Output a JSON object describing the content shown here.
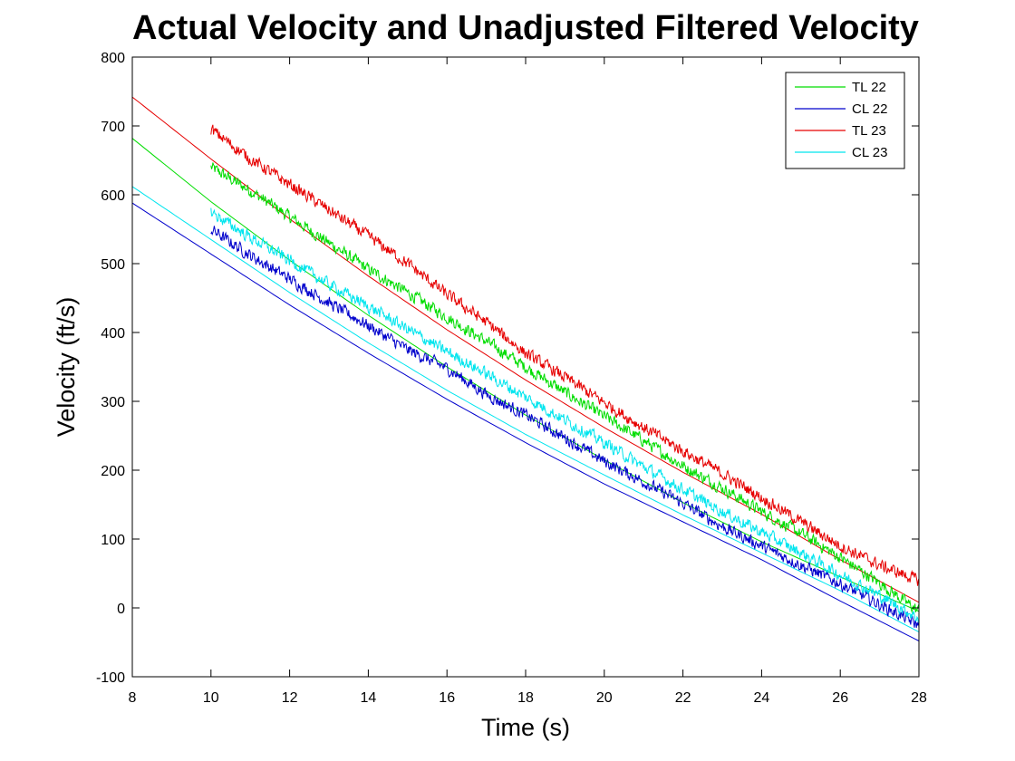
{
  "chart_data": {
    "type": "line",
    "title": "Actual Velocity and Unadjusted Filtered Velocity",
    "xlabel": "Time (s)",
    "ylabel": "Velocity (ft/s)",
    "xlim": [
      8,
      28
    ],
    "ylim": [
      -100,
      800
    ],
    "xticks": [
      8,
      10,
      12,
      14,
      16,
      18,
      20,
      22,
      24,
      26,
      28
    ],
    "yticks": [
      -100,
      0,
      100,
      200,
      300,
      400,
      500,
      600,
      700,
      800
    ],
    "grid": false,
    "legend_position": "top-right",
    "series": [
      {
        "name": "TL 22",
        "color": "#00dd00",
        "style": "smooth",
        "x": [
          8,
          10,
          12,
          14,
          16,
          18,
          20,
          22,
          24,
          26,
          28
        ],
        "y": [
          682,
          590,
          505,
          425,
          350,
          280,
          215,
          153,
          96,
          45,
          -5
        ]
      },
      {
        "name": "CL 22",
        "color": "#0000cc",
        "style": "smooth",
        "x": [
          8,
          10,
          12,
          14,
          16,
          18,
          20,
          22,
          24,
          26,
          28
        ],
        "y": [
          588,
          514,
          440,
          370,
          303,
          240,
          180,
          125,
          70,
          10,
          -48
        ]
      },
      {
        "name": "TL 23",
        "color": "#e60000",
        "style": "smooth",
        "x": [
          8,
          10,
          12,
          14,
          16,
          18,
          20,
          22,
          24,
          26,
          28
        ],
        "y": [
          742,
          652,
          565,
          482,
          404,
          331,
          262,
          197,
          136,
          70,
          8
        ]
      },
      {
        "name": "CL 23",
        "color": "#00e5ee",
        "style": "smooth",
        "x": [
          8,
          10,
          12,
          14,
          16,
          18,
          20,
          22,
          24,
          26,
          28
        ],
        "y": [
          612,
          535,
          458,
          385,
          316,
          252,
          193,
          135,
          80,
          25,
          -35
        ]
      },
      {
        "name": "TL 22",
        "color": "#00dd00",
        "style": "noisy",
        "x": [
          10,
          11,
          12,
          13,
          14,
          15,
          16,
          17,
          18,
          19,
          20,
          21,
          22,
          23,
          24,
          25,
          26,
          27,
          28
        ],
        "y": [
          640,
          606,
          568,
          530,
          492,
          458,
          422,
          387,
          350,
          313,
          278,
          243,
          206,
          174,
          140,
          108,
          73,
          36,
          -5
        ]
      },
      {
        "name": "CL 22",
        "color": "#0000cc",
        "style": "noisy",
        "x": [
          10,
          11,
          12,
          13,
          14,
          15,
          16,
          17,
          18,
          19,
          20,
          21,
          22,
          23,
          24,
          25,
          26,
          27,
          28
        ],
        "y": [
          550,
          512,
          478,
          443,
          410,
          375,
          348,
          310,
          280,
          247,
          213,
          183,
          152,
          118,
          90,
          62,
          35,
          5,
          -25
        ]
      },
      {
        "name": "TL 23",
        "color": "#e60000",
        "style": "noisy",
        "x": [
          10,
          11,
          12,
          13,
          14,
          15,
          16,
          17,
          18,
          19,
          20,
          21,
          22,
          23,
          24,
          25,
          26,
          27,
          28
        ],
        "y": [
          695,
          652,
          615,
          578,
          540,
          500,
          455,
          415,
          370,
          335,
          298,
          262,
          228,
          195,
          160,
          125,
          90,
          62,
          40
        ]
      },
      {
        "name": "CL 23",
        "color": "#00e5ee",
        "style": "noisy",
        "x": [
          10,
          11,
          12,
          13,
          14,
          15,
          16,
          17,
          18,
          19,
          20,
          21,
          22,
          23,
          24,
          25,
          26,
          27,
          28
        ],
        "y": [
          575,
          538,
          505,
          470,
          438,
          405,
          372,
          340,
          306,
          273,
          240,
          205,
          172,
          140,
          110,
          80,
          48,
          18,
          -15
        ]
      }
    ]
  }
}
